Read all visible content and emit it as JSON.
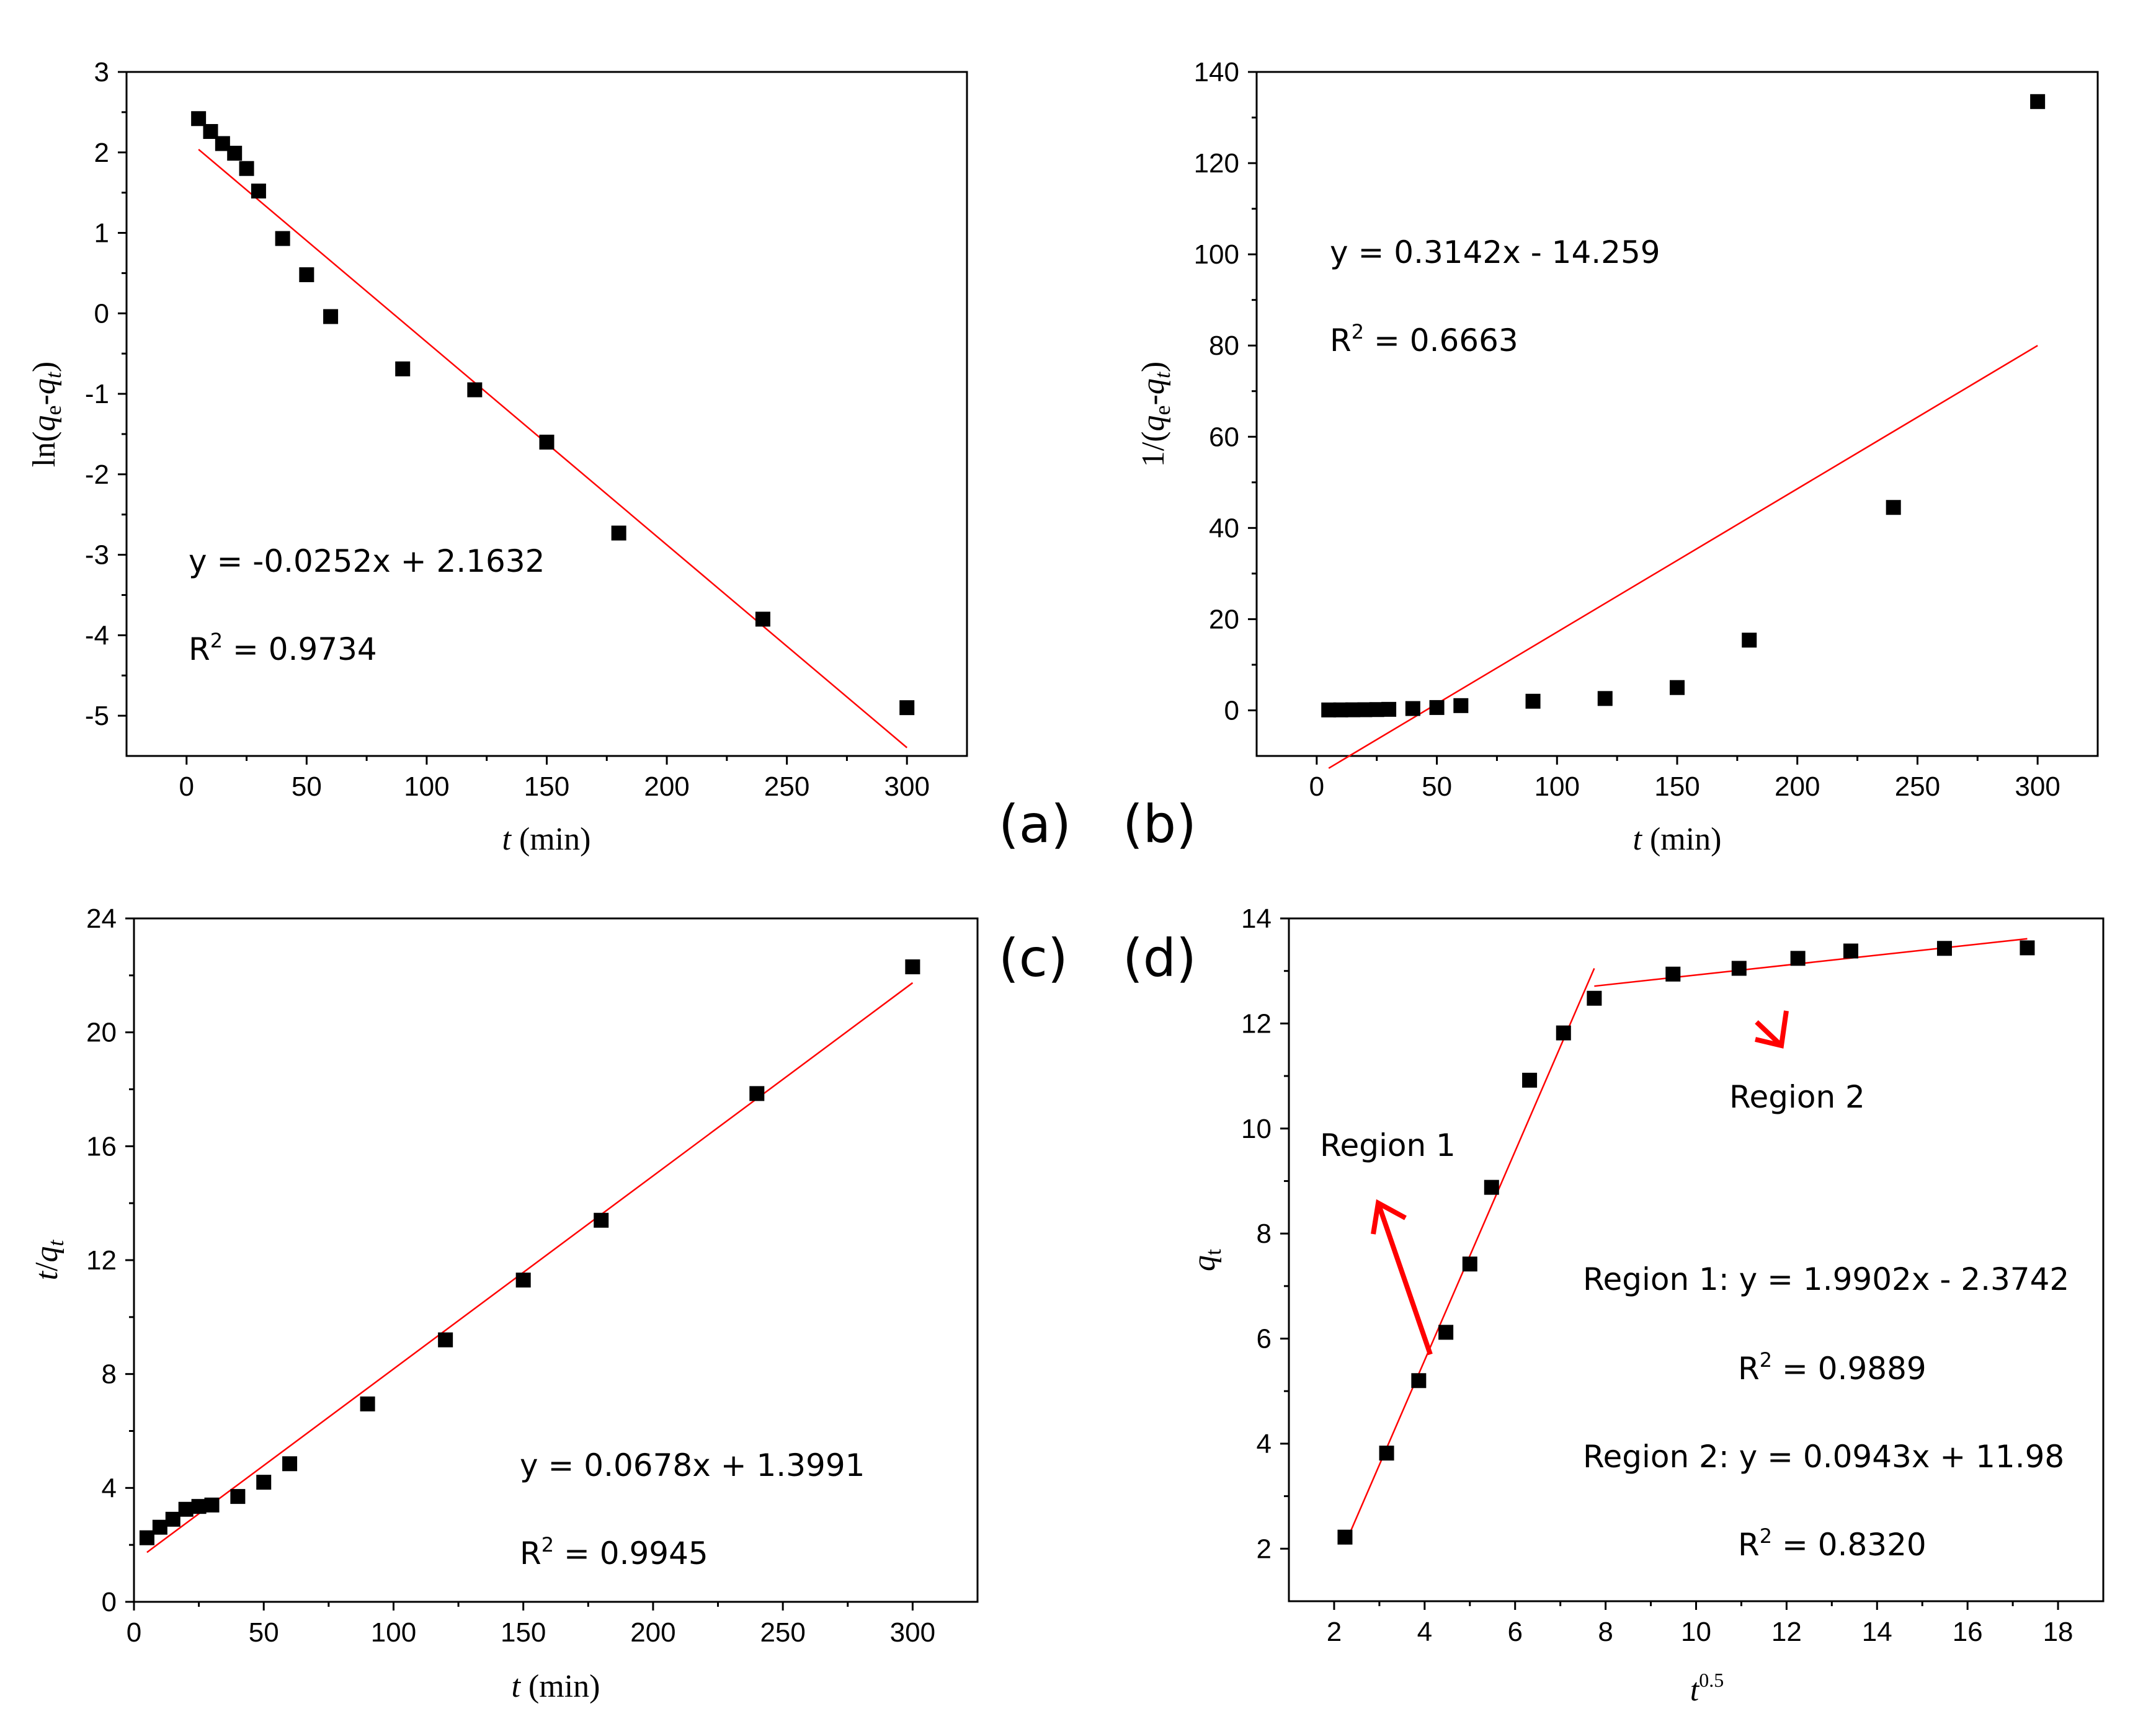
{
  "chart_data": [
    {
      "id": "a",
      "type": "scatter",
      "panel_label": "(a)",
      "xlabel_italic": "t",
      "xlabel_rest": " (min)",
      "ylabel_html": "ln(q_e-q_t)",
      "xlim": [
        -25,
        325
      ],
      "ylim": [
        -5.5,
        3
      ],
      "xticks": [
        0,
        50,
        100,
        150,
        200,
        250,
        300
      ],
      "yticks": [
        -5,
        -4,
        -3,
        -2,
        -1,
        0,
        1,
        2,
        3
      ],
      "x": [
        5,
        10,
        15,
        20,
        25,
        30,
        40,
        50,
        60,
        90,
        120,
        150,
        180,
        240,
        300
      ],
      "y": [
        2.42,
        2.26,
        2.11,
        1.99,
        1.8,
        1.52,
        0.93,
        0.48,
        -0.04,
        -0.69,
        -0.95,
        -1.6,
        -2.73,
        -3.8,
        -4.9
      ],
      "fit": {
        "x0": 5,
        "x1": 300,
        "slope": -0.0252,
        "intercept": 2.1632
      },
      "equation": "y = -0.0252x + 2.1632",
      "r2_value": " = 0.9734"
    },
    {
      "id": "b",
      "type": "scatter",
      "panel_label": "(b)",
      "xlabel_italic": "t",
      "xlabel_rest": " (min)",
      "ylabel_html": "1/(q_e-q_t)",
      "xlim": [
        -25,
        325
      ],
      "ylim": [
        -10,
        140
      ],
      "xticks": [
        0,
        50,
        100,
        150,
        200,
        250,
        300
      ],
      "yticks": [
        0,
        20,
        40,
        60,
        80,
        100,
        120,
        140
      ],
      "x": [
        5,
        10,
        15,
        20,
        25,
        30,
        40,
        50,
        60,
        90,
        120,
        150,
        180,
        240,
        300
      ],
      "y": [
        0.09,
        0.1,
        0.12,
        0.14,
        0.17,
        0.22,
        0.4,
        0.62,
        1.04,
        2.0,
        2.6,
        5.0,
        15.4,
        44.5,
        133.5
      ],
      "fit": {
        "x0": 5,
        "x1": 300,
        "slope": 0.3142,
        "intercept": -14.259
      },
      "equation": "y = 0.3142x - 14.259",
      "r2_value": " = 0.6663"
    },
    {
      "id": "c",
      "type": "scatter",
      "panel_label": "(c)",
      "xlabel_italic": "t",
      "xlabel_rest": " (min)",
      "ylabel_html": "t/q_t",
      "xlim": [
        0,
        325
      ],
      "ylim": [
        0,
        24
      ],
      "xticks": [
        0,
        50,
        100,
        150,
        200,
        250,
        300
      ],
      "yticks": [
        0,
        4,
        8,
        12,
        16,
        20,
        24
      ],
      "x": [
        5,
        10,
        15,
        20,
        25,
        30,
        40,
        50,
        60,
        90,
        120,
        150,
        180,
        240,
        300
      ],
      "y": [
        2.25,
        2.62,
        2.9,
        3.25,
        3.35,
        3.4,
        3.7,
        4.2,
        4.85,
        6.95,
        9.2,
        11.3,
        13.4,
        17.85,
        22.3
      ],
      "fit": {
        "x0": 5,
        "x1": 300,
        "slope": 0.0678,
        "intercept": 1.3991
      },
      "equation": "y = 0.0678x + 1.3991",
      "r2_value": " = 0.9945"
    },
    {
      "id": "d",
      "type": "scatter",
      "panel_label": "(d)",
      "xlabel_italic": "t",
      "xlabel_sup": "0.5",
      "ylabel_html": "q_t",
      "xlim": [
        1,
        19
      ],
      "ylim": [
        1,
        14
      ],
      "xticks": [
        2,
        4,
        6,
        8,
        10,
        12,
        14,
        16,
        18
      ],
      "yticks": [
        2,
        4,
        6,
        8,
        10,
        12,
        14
      ],
      "x": [
        2.24,
        3.16,
        3.87,
        4.47,
        5.0,
        5.48,
        6.32,
        7.07,
        7.75,
        9.49,
        10.95,
        12.25,
        13.42,
        15.49,
        17.32
      ],
      "y": [
        2.22,
        3.82,
        5.2,
        6.12,
        7.42,
        8.88,
        10.92,
        11.82,
        12.48,
        12.94,
        13.05,
        13.24,
        13.38,
        13.43,
        13.44
      ],
      "fits": [
        {
          "x0": 2.24,
          "x1": 7.75,
          "slope": 1.9902,
          "intercept": -2.3742
        },
        {
          "x0": 7.75,
          "x1": 17.32,
          "slope": 0.0943,
          "intercept": 11.98
        }
      ],
      "region1_label": "Region 1",
      "region2_label": "Region 2",
      "equation1": "Region 1: y = 1.9902x - 2.3742",
      "r2_1_value": " = 0.9889",
      "equation2": "Region 2: y = 0.0943x + 11.98",
      "r2_2_value": " = 0.8320"
    }
  ],
  "r2_prefix": "R",
  "r2_sup": "2",
  "colors": {
    "fit": "#ff0000",
    "points": "#000000",
    "axes": "#000000"
  }
}
